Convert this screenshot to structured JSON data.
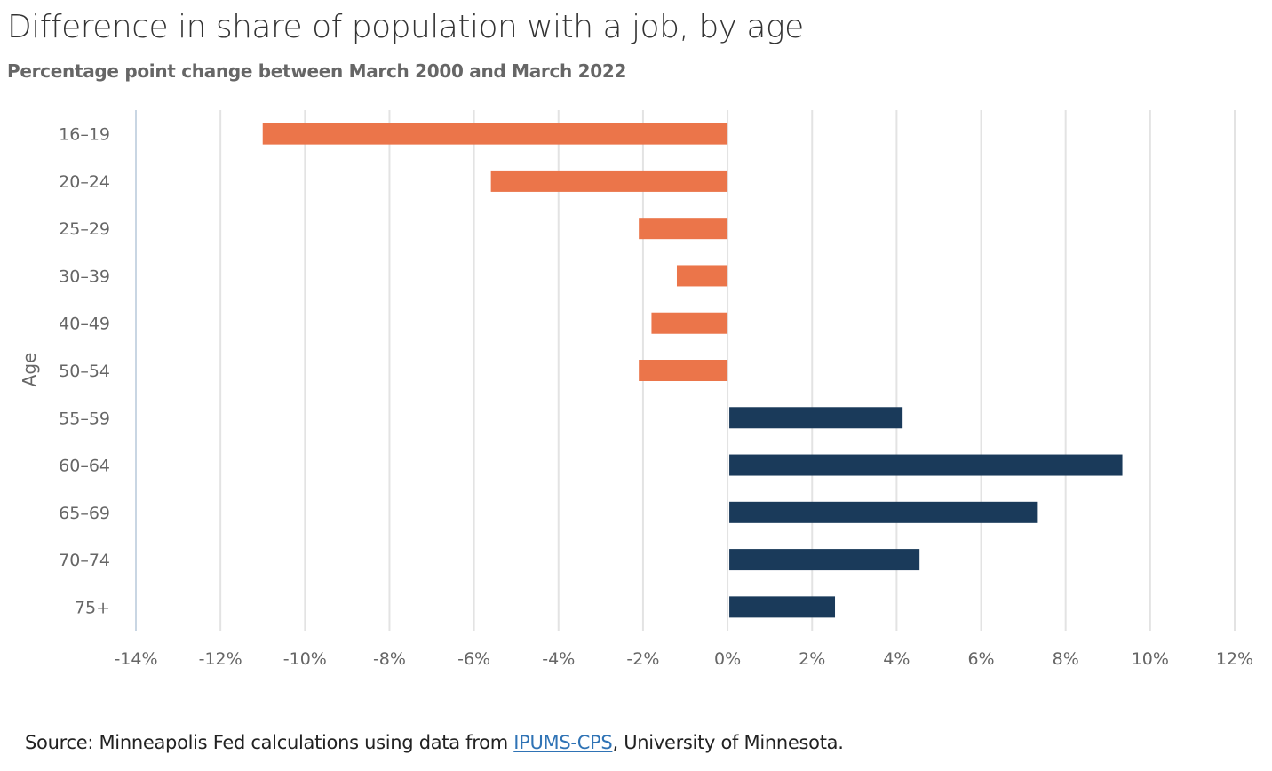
{
  "chart_data": {
    "type": "bar",
    "orientation": "horizontal",
    "title": "Difference in share of population with a job, by age",
    "subtitle": "Percentage point change between March 2000 and March 2022",
    "xlabel": "",
    "ylabel": "Age",
    "xlim": [
      -14,
      12
    ],
    "x_ticks": [
      -14,
      -12,
      -10,
      -8,
      -6,
      -4,
      -2,
      0,
      2,
      4,
      6,
      8,
      10,
      12
    ],
    "x_tick_labels": [
      "-14%",
      "-12%",
      "-10%",
      "-8%",
      "-6%",
      "-4%",
      "-2%",
      "0%",
      "2%",
      "4%",
      "6%",
      "8%",
      "10%",
      "12%"
    ],
    "grid": true,
    "categories": [
      "16–19",
      "20–24",
      "25–29",
      "30–39",
      "40–49",
      "50–54",
      "55–59",
      "60–64",
      "65–69",
      "70–74",
      "75+"
    ],
    "values": [
      -11.0,
      -5.6,
      -2.1,
      -1.2,
      -1.8,
      -2.1,
      4.1,
      9.3,
      7.3,
      4.5,
      2.5
    ],
    "colors": {
      "negative": "#eb754a",
      "positive": "#1a3a5a",
      "grid": "#e3e3e3",
      "axis": "#c9d6e3"
    }
  },
  "source": {
    "prefix": "Source: Minneapolis Fed calculations using data from ",
    "link_text": "IPUMS-CPS",
    "suffix": ", University of Minnesota."
  }
}
